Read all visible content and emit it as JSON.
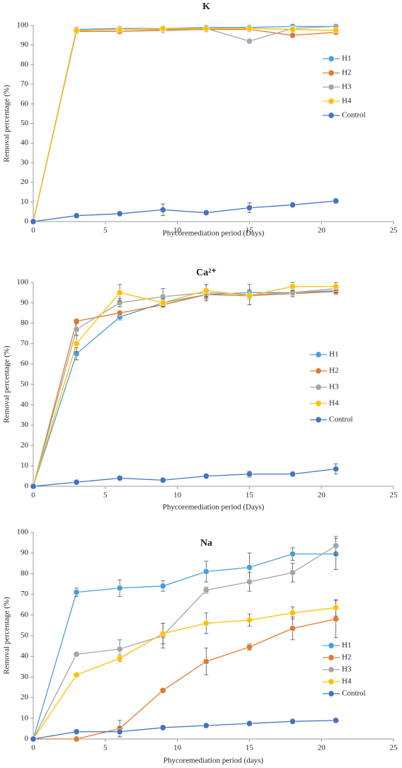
{
  "chart_data": [
    {
      "type": "line",
      "title": "K",
      "x_label": "Phycoremediation  period (Days)",
      "y_label": "Removal percentage (%)",
      "x": [
        0,
        3,
        6,
        9,
        12,
        15,
        18,
        21
      ],
      "xlim": [
        0,
        25
      ],
      "xticks": [
        0,
        5,
        10,
        15,
        20,
        25
      ],
      "ylim": [
        0,
        100
      ],
      "yticks": [
        0,
        10,
        20,
        30,
        40,
        50,
        60,
        70,
        80,
        90,
        100
      ],
      "grid": false,
      "legend": "right",
      "series": [
        {
          "name": "H1",
          "color": "#4a9fd9",
          "values": [
            0,
            98,
            98.5,
            98.5,
            99,
            99,
            99.5,
            99.5
          ],
          "errors": [
            0,
            0.5,
            0.5,
            0.5,
            0.5,
            0.5,
            0.5,
            0.5
          ]
        },
        {
          "name": "H2",
          "color": "#e07a30",
          "values": [
            0,
            97,
            97,
            97.5,
            98,
            98,
            95,
            96.5
          ],
          "errors": [
            0,
            0.5,
            0.5,
            0.5,
            0.5,
            0.5,
            0.5,
            0.5
          ]
        },
        {
          "name": "H3",
          "color": "#a5a5a5",
          "values": [
            0,
            97.5,
            98,
            98,
            98.5,
            92,
            98.5,
            99.5
          ],
          "errors": [
            0,
            0.5,
            0.5,
            0.5,
            0.5,
            1,
            0.5,
            0.5
          ]
        },
        {
          "name": "H4",
          "color": "#ffc000",
          "values": [
            0,
            97.5,
            98,
            98.5,
            98.5,
            98.5,
            98,
            97.5
          ],
          "errors": [
            0,
            0.5,
            0.5,
            0.5,
            0.5,
            0.5,
            0.5,
            0.5
          ]
        },
        {
          "name": "Control",
          "color": "#4472c4",
          "values": [
            0,
            3,
            4,
            6,
            4.5,
            7,
            8.5,
            10.5
          ],
          "errors": [
            0,
            0.5,
            0.8,
            3,
            0.8,
            2.5,
            1,
            1
          ]
        }
      ]
    },
    {
      "type": "line",
      "title": "Ca²⁺",
      "x_label": "Phycoremediation period (Days)",
      "y_label": "Removal percentage (%)",
      "x": [
        0,
        3,
        6,
        9,
        12,
        15,
        18,
        21
      ],
      "xlim": [
        0,
        25
      ],
      "xticks": [
        0,
        5,
        10,
        15,
        20,
        25
      ],
      "ylim": [
        0,
        100
      ],
      "yticks": [
        0,
        10,
        20,
        30,
        40,
        50,
        60,
        70,
        80,
        90,
        100
      ],
      "grid": false,
      "legend": "right",
      "series": [
        {
          "name": "H1",
          "color": "#4a9fd9",
          "values": [
            0,
            65,
            83,
            90,
            94,
            95,
            95,
            96
          ],
          "errors": [
            0,
            3,
            1.5,
            1.5,
            2,
            1.5,
            1.5,
            1.5
          ]
        },
        {
          "name": "H2",
          "color": "#e07a30",
          "values": [
            0,
            81,
            85,
            89,
            94,
            93.5,
            94.5,
            95.5
          ],
          "errors": [
            0,
            1,
            1,
            1,
            1.5,
            1,
            1.5,
            1.5
          ]
        },
        {
          "name": "H3",
          "color": "#a5a5a5",
          "values": [
            0,
            77,
            90,
            93,
            95,
            94,
            95,
            97
          ],
          "errors": [
            0,
            3,
            2,
            4,
            4,
            5,
            2,
            2
          ]
        },
        {
          "name": "H4",
          "color": "#ffc000",
          "values": [
            0,
            70,
            95,
            90,
            96,
            93.5,
            98,
            98
          ],
          "errors": [
            0,
            4,
            4,
            2,
            3,
            1.5,
            2,
            2
          ]
        },
        {
          "name": "Control",
          "color": "#4472c4",
          "values": [
            0,
            2,
            4,
            3,
            5,
            6,
            6,
            8.5
          ],
          "errors": [
            0,
            0.5,
            1,
            0.8,
            1,
            1.5,
            1,
            2.5
          ]
        }
      ]
    },
    {
      "type": "line",
      "title": "Na",
      "x_label": "Phycoremediation period (days)",
      "y_label": "Removal percentage (%)",
      "x": [
        0,
        3,
        6,
        9,
        12,
        15,
        18,
        21
      ],
      "xlim": [
        0,
        25
      ],
      "xticks": [
        0,
        5,
        10,
        15,
        20,
        25
      ],
      "ylim": [
        0,
        100
      ],
      "yticks": [
        0,
        10,
        20,
        30,
        40,
        50,
        60,
        70,
        80,
        90,
        100
      ],
      "grid": false,
      "legend": "right",
      "series": [
        {
          "name": "H1",
          "color": "#4a9fd9",
          "values": [
            0,
            71,
            73,
            74,
            81,
            83,
            89.5,
            89.5
          ],
          "errors": [
            0,
            2,
            4,
            2.5,
            5,
            7,
            3,
            7.5
          ]
        },
        {
          "name": "H2",
          "color": "#e07a30",
          "values": [
            0,
            0,
            5,
            23.5,
            37.5,
            44.5,
            53.5,
            58
          ],
          "errors": [
            0,
            0.5,
            4,
            1,
            6.5,
            1.5,
            5.5,
            9
          ]
        },
        {
          "name": "H3",
          "color": "#a5a5a5",
          "values": [
            0,
            41,
            43.5,
            50,
            72,
            76,
            80.5,
            93.5
          ],
          "errors": [
            0,
            1,
            4.5,
            6,
            1.5,
            4.5,
            4.5,
            4.5
          ]
        },
        {
          "name": "H4",
          "color": "#ffc000",
          "values": [
            0,
            31,
            39,
            51,
            56,
            57.5,
            61,
            63.5
          ],
          "errors": [
            0,
            1,
            1.5,
            5,
            5,
            3,
            3,
            4
          ]
        },
        {
          "name": "Control",
          "color": "#4472c4",
          "values": [
            0,
            3.5,
            3.5,
            5.5,
            6.5,
            7.5,
            8.5,
            9
          ],
          "errors": [
            0,
            0.5,
            2.5,
            0.5,
            0.5,
            0.5,
            0.5,
            0.5
          ]
        }
      ]
    }
  ]
}
